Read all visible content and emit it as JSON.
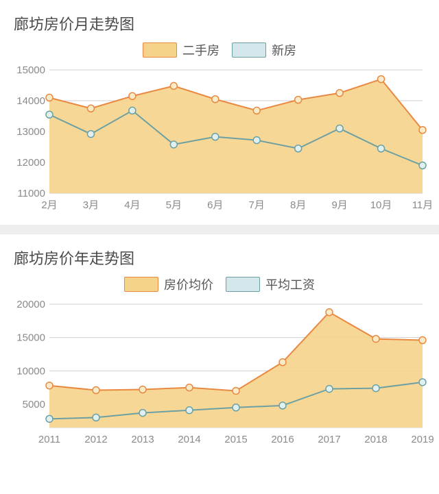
{
  "chart1": {
    "title": "廊坊房价月走势图",
    "type": "area-line",
    "legend": [
      {
        "label": "二手房",
        "fill": "#f6d38a",
        "stroke": "#e98840"
      },
      {
        "label": "新房",
        "fill": "#d3e7ea",
        "stroke": "#6aa0a4"
      }
    ],
    "x_labels": [
      "2月",
      "3月",
      "4月",
      "5月",
      "6月",
      "7月",
      "8月",
      "9月",
      "10月",
      "11月"
    ],
    "y_ticks": [
      11000,
      12000,
      13000,
      14000,
      15000
    ],
    "ylim": [
      11000,
      15000
    ],
    "series": [
      {
        "name": "二手房",
        "color": "#e98840",
        "fill": "rgba(246,211,138,0.9)",
        "marker_fill": "#f7ebc8",
        "values": [
          14100,
          13750,
          14150,
          14480,
          14050,
          13680,
          14030,
          14250,
          14700,
          13050
        ]
      },
      {
        "name": "新房",
        "color": "#6aa0a4",
        "fill": "none",
        "marker_fill": "#e2efef",
        "values": [
          13550,
          12920,
          13680,
          12580,
          12830,
          12720,
          12450,
          13100,
          12450,
          11900
        ]
      }
    ],
    "grid_color": "#cfcfcf",
    "background_color": "#ffffff",
    "line_width": 2,
    "marker_radius": 5,
    "label_fontsize": 15
  },
  "chart2": {
    "title": "廊坊房价年走势图",
    "type": "area-line",
    "legend": [
      {
        "label": "房价均价",
        "fill": "#f6d38a",
        "stroke": "#e98840"
      },
      {
        "label": "平均工资",
        "fill": "#d3e7ea",
        "stroke": "#6aa0a4"
      }
    ],
    "x_labels": [
      "2011",
      "2012",
      "2013",
      "2014",
      "2015",
      "2016",
      "2017",
      "2018",
      "2019"
    ],
    "y_ticks": [
      5000,
      10000,
      15000,
      20000
    ],
    "ylim": [
      1500,
      20000
    ],
    "series": [
      {
        "name": "房价均价",
        "color": "#e98840",
        "fill": "rgba(246,211,138,0.9)",
        "marker_fill": "#f7ebc8",
        "values": [
          7800,
          7100,
          7200,
          7500,
          7000,
          11300,
          18800,
          14800,
          14600
        ]
      },
      {
        "name": "平均工资",
        "color": "#6aa0a4",
        "fill": "none",
        "marker_fill": "#e2efef",
        "values": [
          2800,
          3000,
          3700,
          4100,
          4500,
          4800,
          7300,
          7400,
          8300
        ]
      }
    ],
    "grid_color": "#cfcfcf",
    "background_color": "#ffffff",
    "line_width": 2,
    "marker_radius": 5,
    "label_fontsize": 15
  }
}
